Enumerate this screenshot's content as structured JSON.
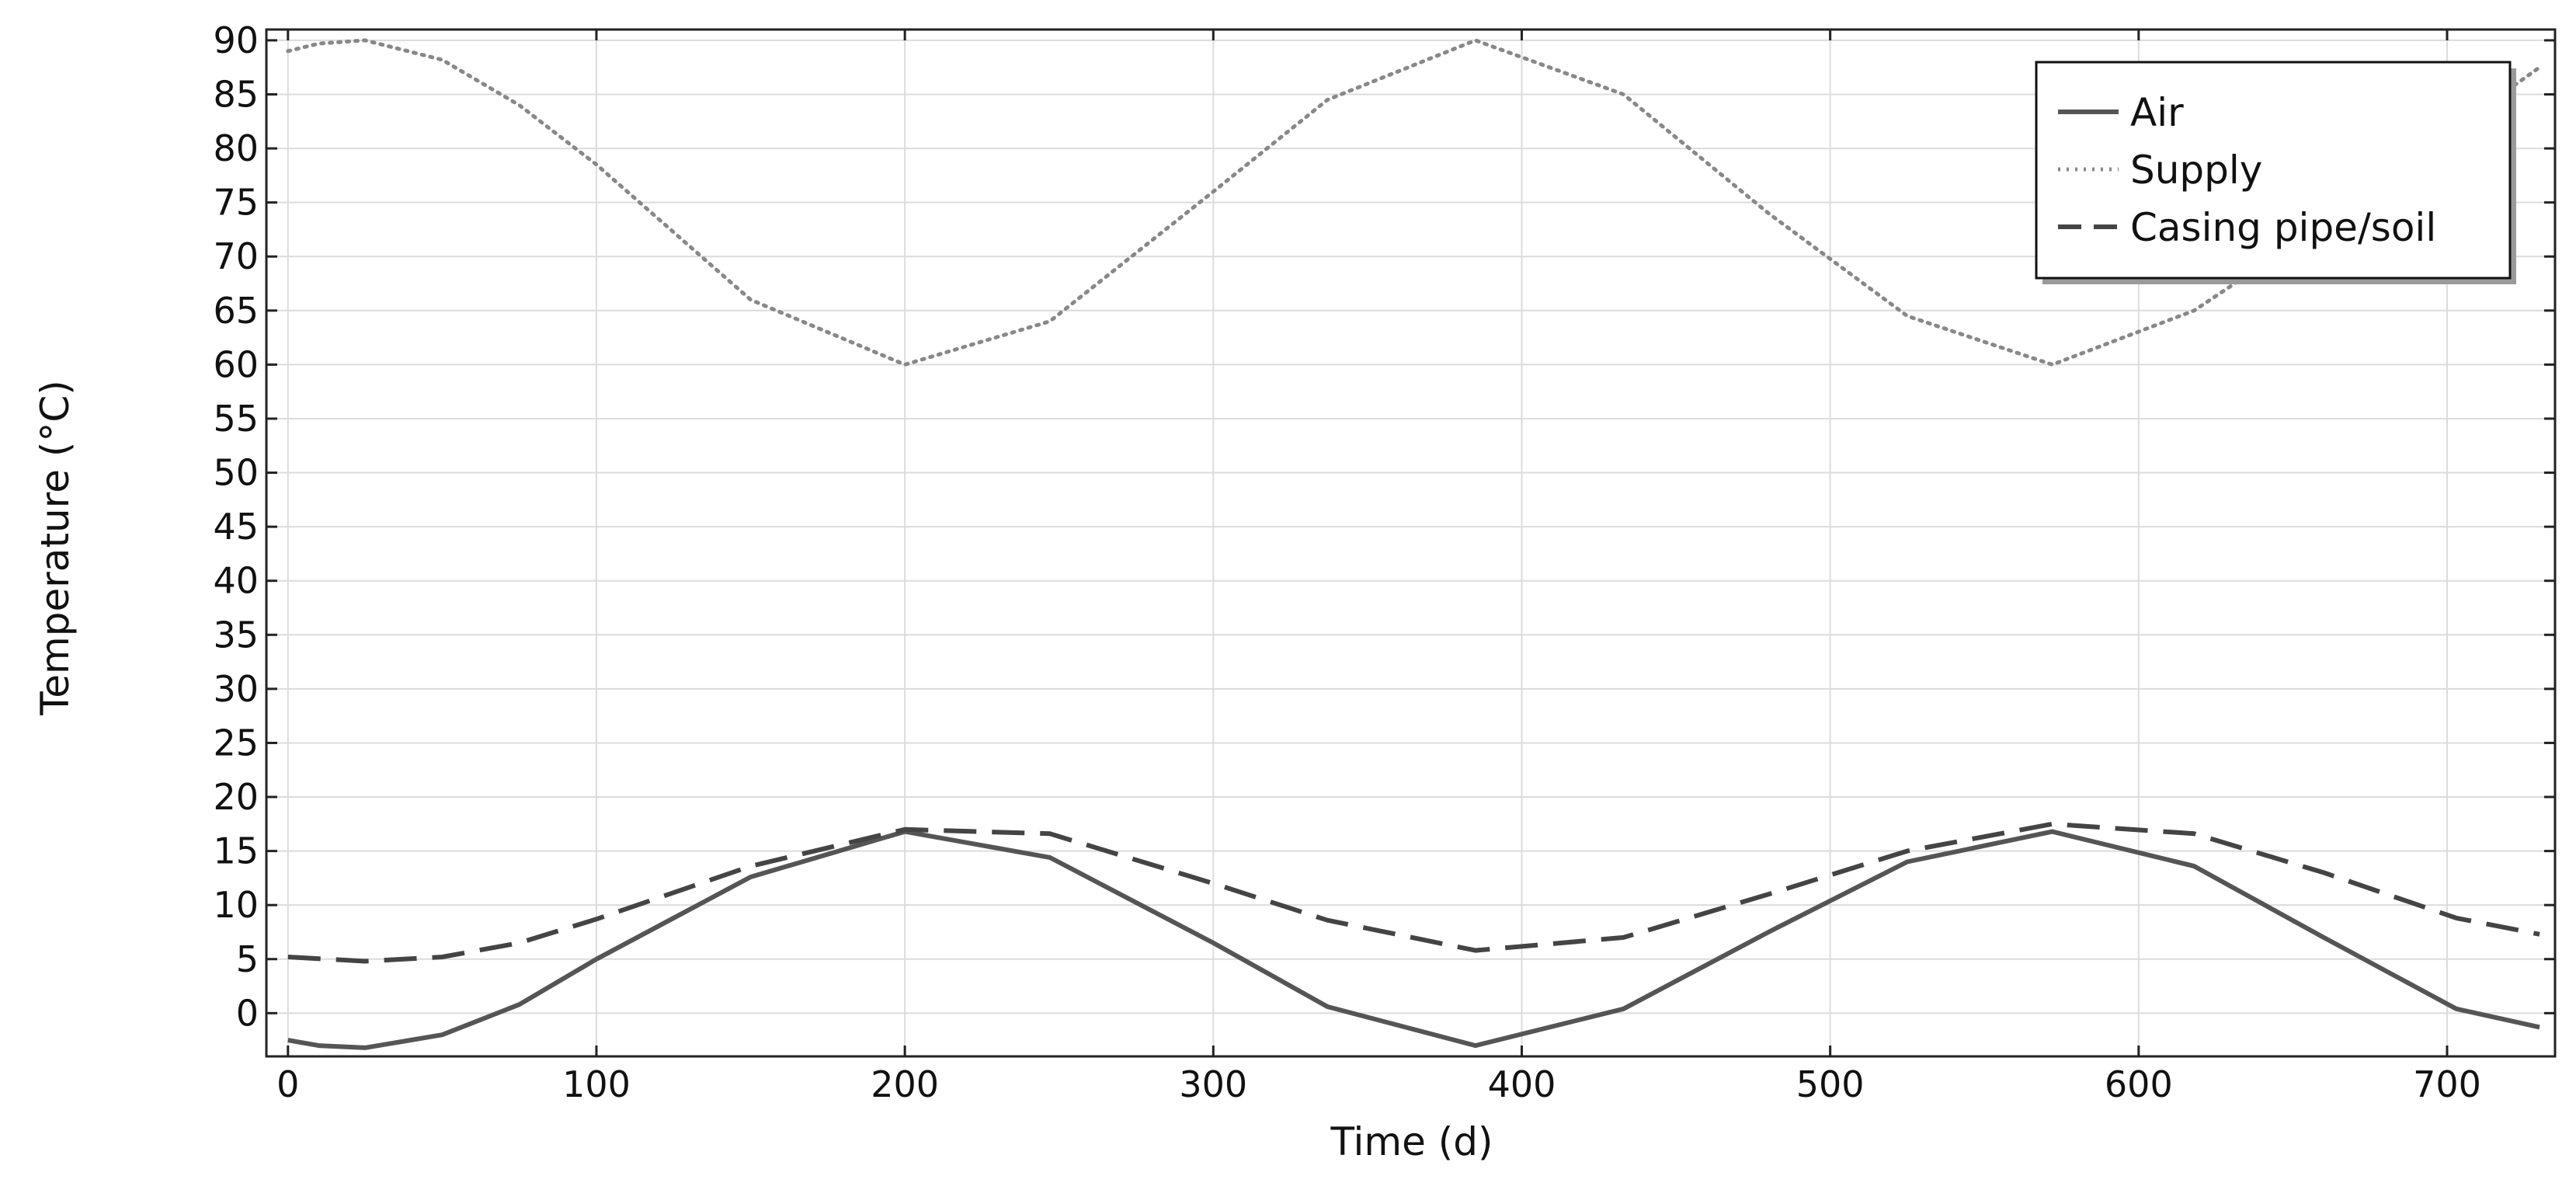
{
  "chart_data": {
    "type": "line",
    "title": "",
    "xlabel": "Time (d)",
    "ylabel": "Temperature (°C)",
    "xlim": [
      -7,
      735
    ],
    "ylim": [
      -4,
      91
    ],
    "xticks": [
      0,
      100,
      200,
      300,
      400,
      500,
      600,
      700
    ],
    "yticks": [
      0,
      5,
      10,
      15,
      20,
      25,
      30,
      35,
      40,
      45,
      50,
      55,
      60,
      65,
      70,
      75,
      80,
      85,
      90
    ],
    "grid": true,
    "legend_position": "top-right",
    "series": [
      {
        "name": "Air",
        "style": "solid",
        "color": "#555555",
        "x": [
          0,
          10,
          25,
          50,
          75,
          100,
          150,
          200,
          247,
          300,
          337,
          385,
          433,
          480,
          525,
          572,
          618,
          660,
          703,
          730
        ],
        "y": [
          -2.5,
          -3,
          -3.2,
          -2,
          0.8,
          5,
          12.6,
          16.8,
          14.4,
          6.5,
          0.6,
          -3,
          0.4,
          7.5,
          14,
          16.8,
          13.6,
          7,
          0.4,
          -1.3
        ]
      },
      {
        "name": "Supply",
        "style": "dotted",
        "color": "#888888",
        "x": [
          0,
          10,
          25,
          50,
          75,
          100,
          150,
          200,
          247,
          300,
          337,
          385,
          433,
          480,
          525,
          572,
          618,
          660,
          703,
          730
        ],
        "y": [
          89,
          89.7,
          90,
          88.2,
          84,
          78.5,
          66,
          60,
          64,
          76,
          84.5,
          90,
          85,
          74,
          64.5,
          60,
          65,
          73,
          82,
          87.5
        ]
      },
      {
        "name": "Casing pipe/soil",
        "style": "dashed",
        "color": "#444444",
        "x": [
          0,
          25,
          50,
          75,
          100,
          150,
          200,
          247,
          300,
          337,
          385,
          433,
          480,
          525,
          572,
          618,
          660,
          703,
          730
        ],
        "y": [
          5.2,
          4.8,
          5.2,
          6.5,
          8.7,
          13.6,
          17,
          16.6,
          12,
          8.6,
          5.8,
          7,
          11,
          15,
          17.5,
          16.6,
          13,
          8.8,
          7.3
        ]
      }
    ]
  }
}
